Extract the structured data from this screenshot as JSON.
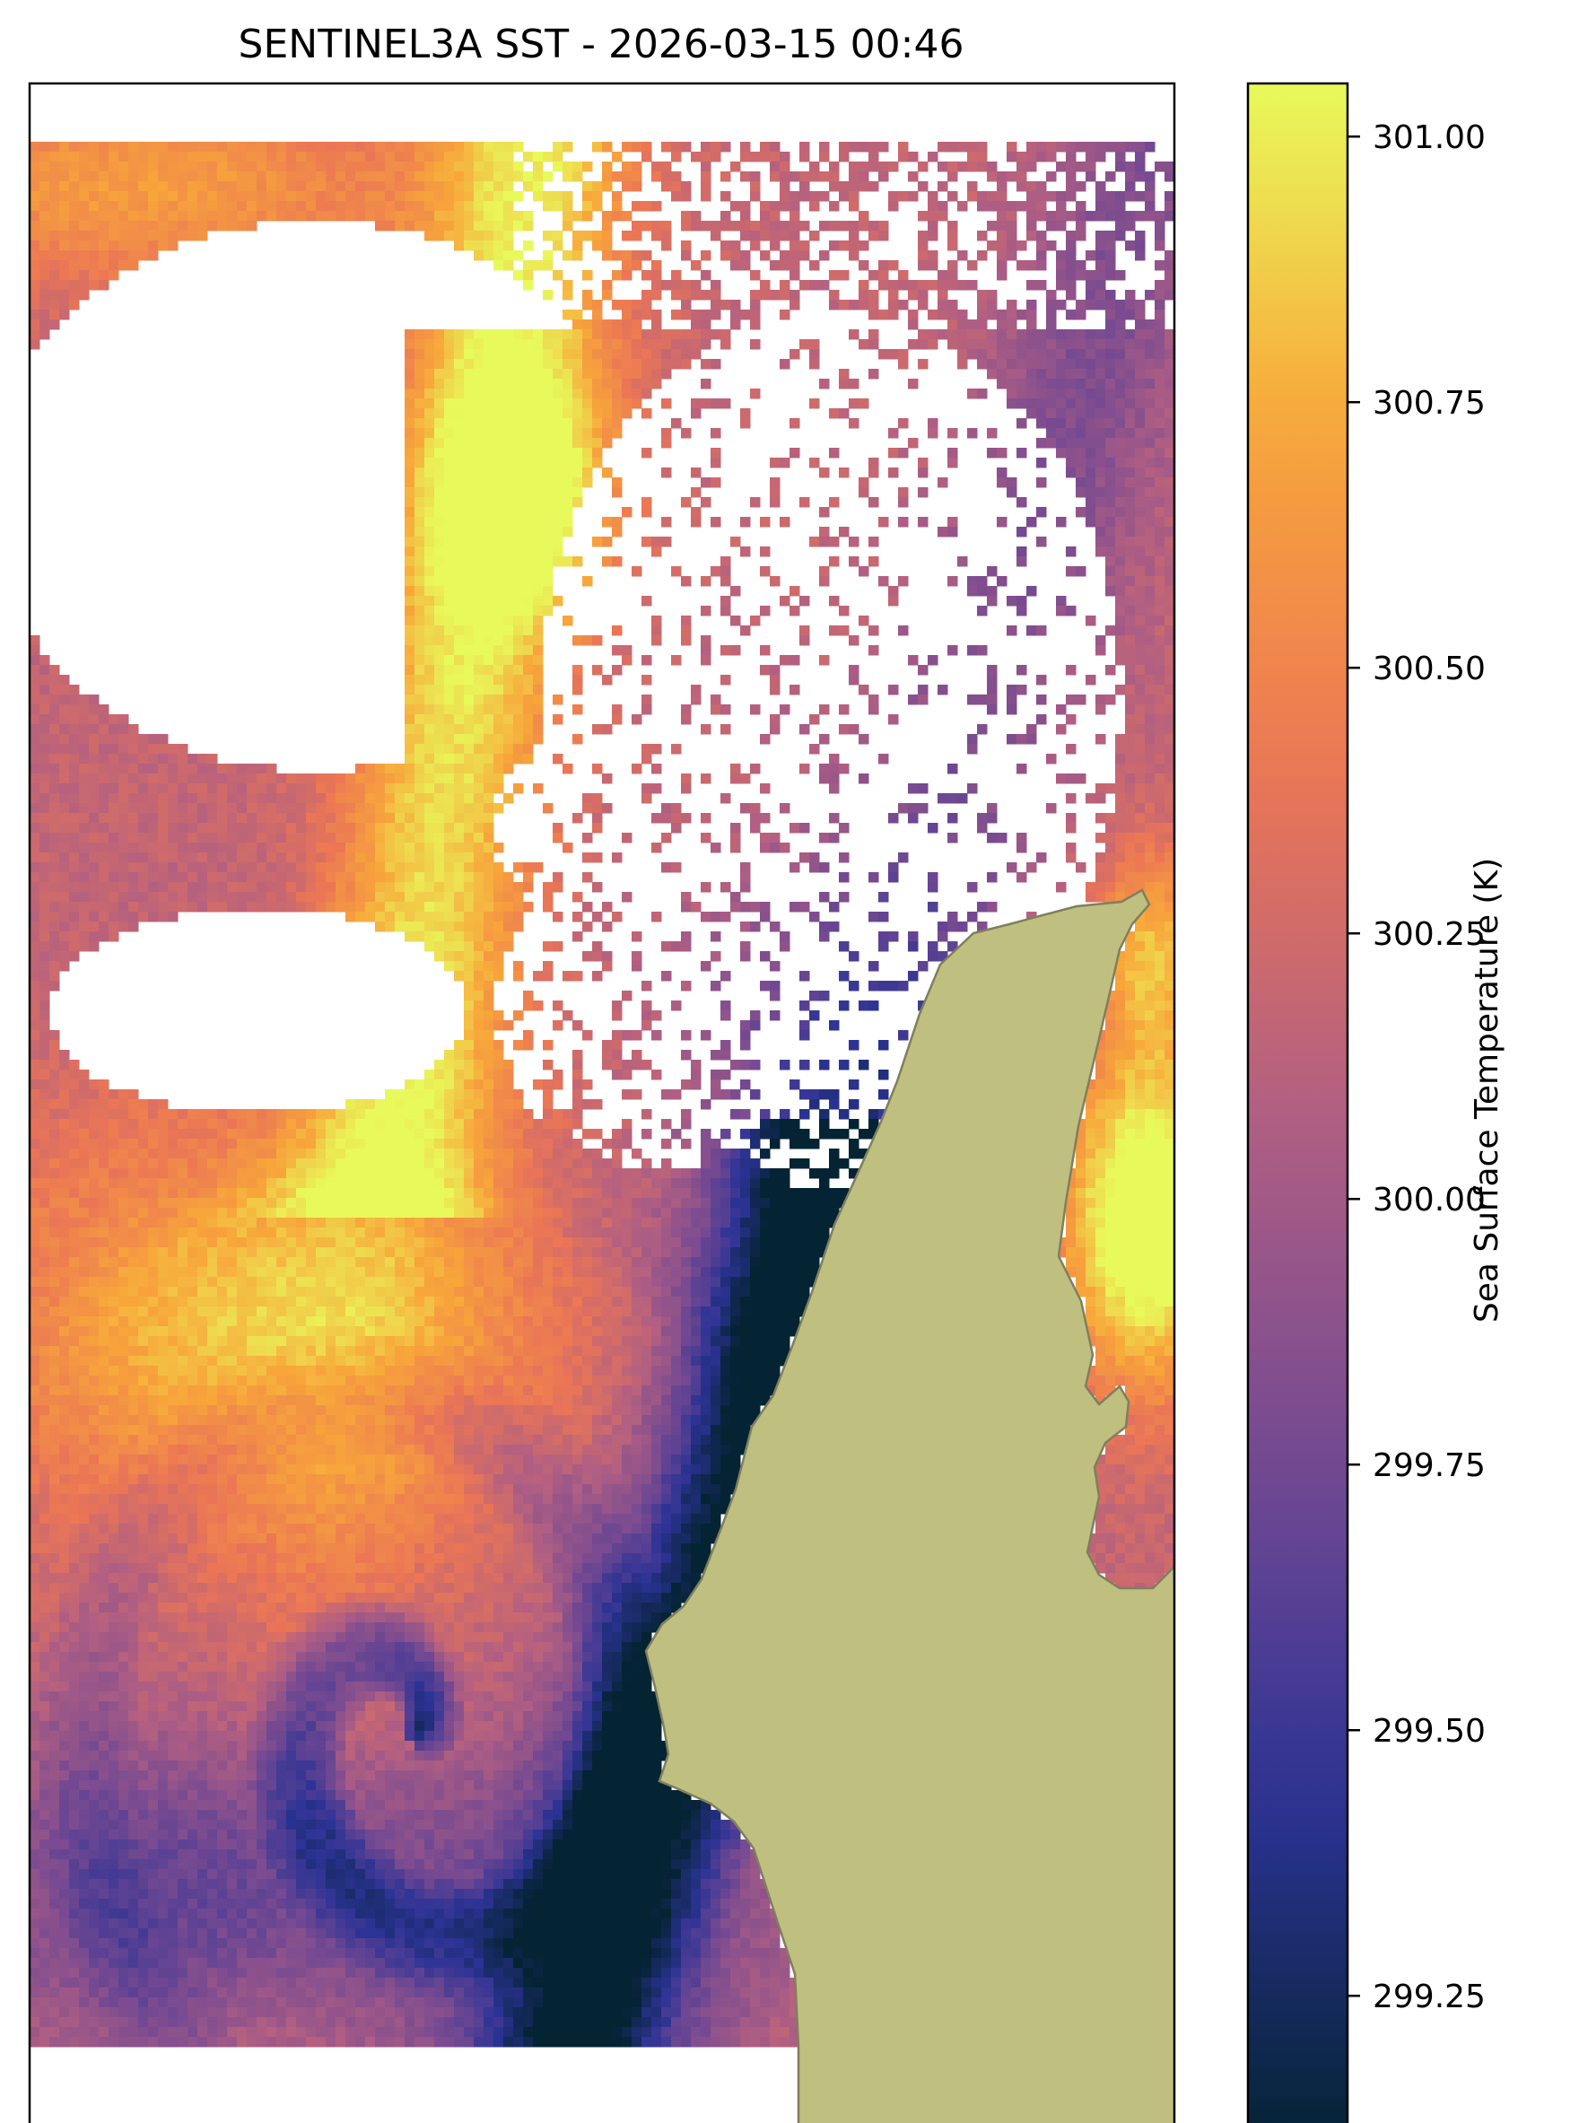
{
  "chart_data": {
    "type": "heatmap",
    "title": "SENTINEL3A SST - 2026-03-15 00:46",
    "colorbar": {
      "label": "Sea Surface Temperature (K)",
      "range": [
        299.11,
        301.05
      ],
      "ticks": [
        299.25,
        299.5,
        299.75,
        300.0,
        300.25,
        300.5,
        300.75,
        301.0
      ],
      "tick_labels": [
        "299.25",
        "299.50",
        "299.75",
        "300.00",
        "300.25",
        "300.50",
        "300.75",
        "301.00"
      ],
      "colormap": "thermal",
      "colormap_stops": [
        "#042333",
        "#2c3395",
        "#744992",
        "#b15f82",
        "#eb7655",
        "#f8a63a",
        "#e8fa5b"
      ]
    },
    "land_color": "#bfbf80",
    "land_edge_color": "#7f7f5f",
    "missing_color": "#ffffff",
    "grid": false,
    "axis_ticks": false,
    "field_summary": {
      "warmest_region": "upper-middle filament and lower-left plume, about 300.9 K",
      "coolest_region": "nearshore waters and eddy core, about 299.15 K",
      "cloud_masked_areas": "large white gaps in the upper-left and center"
    }
  }
}
